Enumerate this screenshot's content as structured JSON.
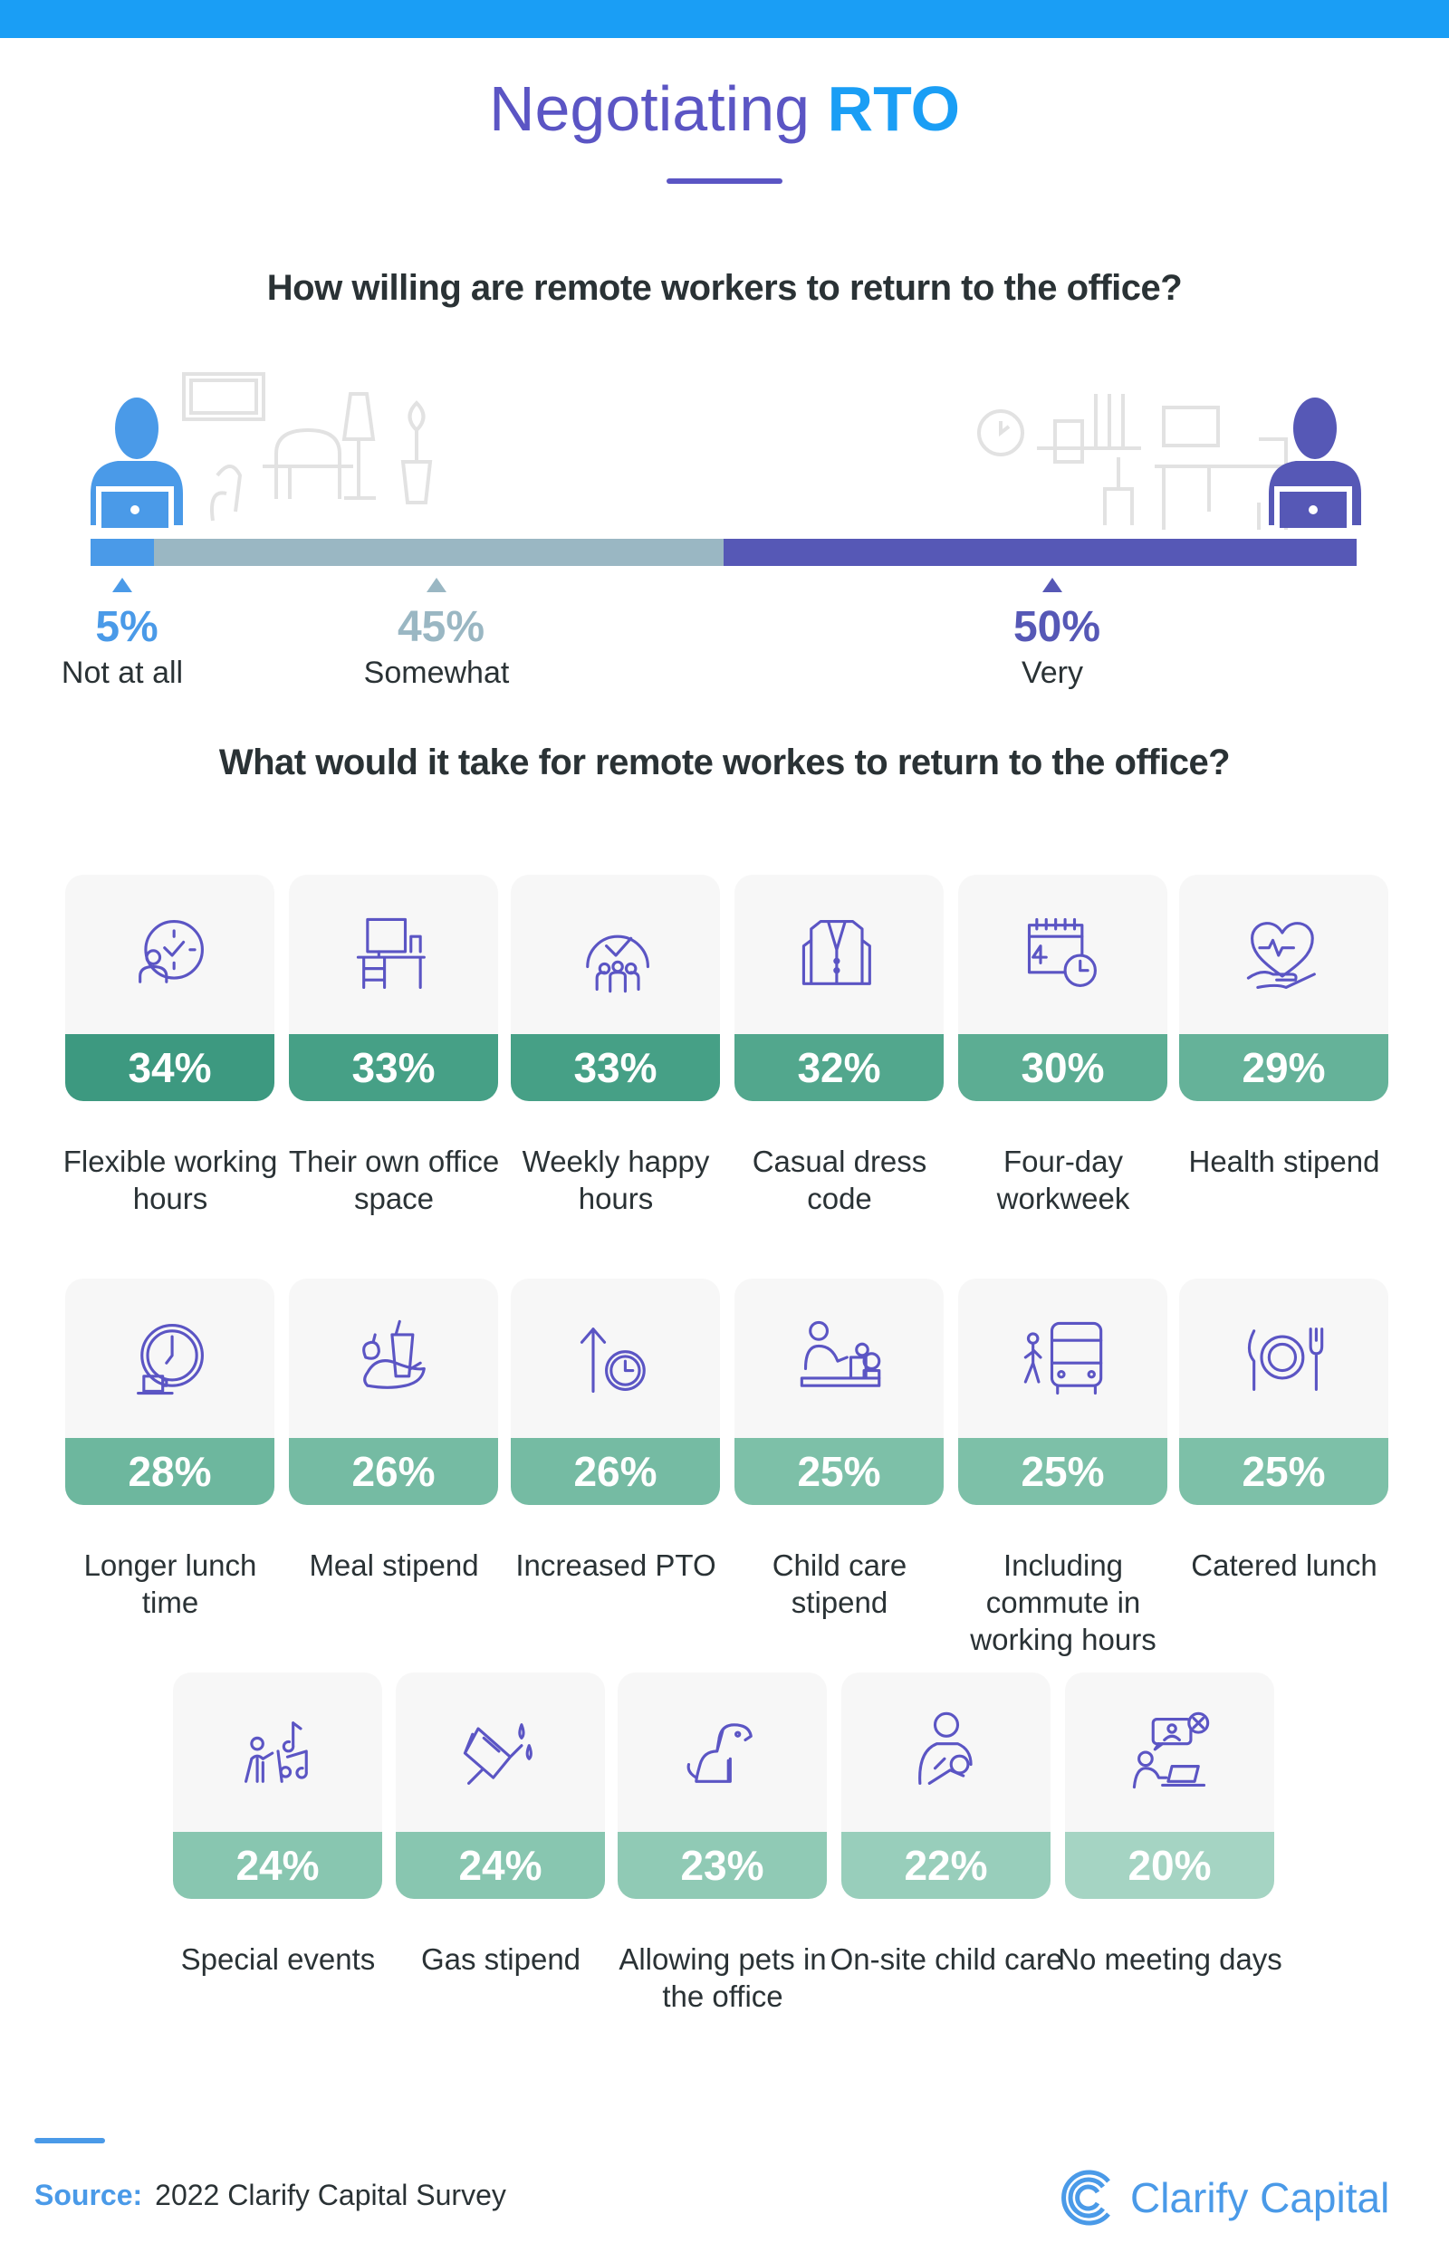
{
  "header": {
    "title_light": "Negotiating",
    "title_bold": "RTO"
  },
  "willingness": {
    "question": "How willing are remote workers to return to the office?",
    "segments": [
      {
        "label": "Not at all",
        "value": 5,
        "display": "5%",
        "color": "#4a9ae8"
      },
      {
        "label": "Somewhat",
        "value": 45,
        "display": "45%",
        "color": "#9ab7c3"
      },
      {
        "label": "Very",
        "value": 50,
        "display": "50%",
        "color": "#5658b6"
      }
    ]
  },
  "incentives": {
    "question": "What would it take for remote workes to return to the office?",
    "items": [
      {
        "pct": "34%",
        "label": "Flexible working hours",
        "icon": "clock-person-icon",
        "color": "#3d9980"
      },
      {
        "pct": "33%",
        "label": "Their own office space",
        "icon": "desk-icon",
        "color": "#46a086"
      },
      {
        "pct": "33%",
        "label": "Weekly happy hours",
        "icon": "clock-group-icon",
        "color": "#46a086"
      },
      {
        "pct": "32%",
        "label": "Casual dress code",
        "icon": "jacket-icon",
        "color": "#52a78d"
      },
      {
        "pct": "30%",
        "label": "Four-day workweek",
        "icon": "calendar-clock-icon",
        "color": "#5cad93"
      },
      {
        "pct": "29%",
        "label": "Health stipend",
        "icon": "heart-hand-icon",
        "color": "#65b299"
      },
      {
        "pct": "28%",
        "label": "Longer lunch time",
        "icon": "clock-coffee-icon",
        "color": "#6db79e"
      },
      {
        "pct": "26%",
        "label": "Meal stipend",
        "icon": "food-icon",
        "color": "#75bba3"
      },
      {
        "pct": "26%",
        "label": "Increased PTO",
        "icon": "arrow-clock-icon",
        "color": "#75bba3"
      },
      {
        "pct": "25%",
        "label": "Child care stipend",
        "icon": "child-care-icon",
        "color": "#7dc0a8"
      },
      {
        "pct": "25%",
        "label": "Including commute in working hours",
        "icon": "bus-icon",
        "color": "#7dc0a8"
      },
      {
        "pct": "25%",
        "label": "Catered lunch",
        "icon": "plate-icon",
        "color": "#7dc0a8"
      },
      {
        "pct": "24%",
        "label": "Special events",
        "icon": "music-icon",
        "color": "#88c6b0"
      },
      {
        "pct": "24%",
        "label": "Gas stipend",
        "icon": "gas-pump-icon",
        "color": "#88c6b0"
      },
      {
        "pct": "23%",
        "label": "Allowing pets in the office",
        "icon": "dog-icon",
        "color": "#90cab5"
      },
      {
        "pct": "22%",
        "label": "On-site child care",
        "icon": "parent-child-icon",
        "color": "#98cebb"
      },
      {
        "pct": "20%",
        "label": "No meeting days",
        "icon": "no-meeting-icon",
        "color": "#a5d4c3"
      }
    ]
  },
  "footer": {
    "source_label": "Source:",
    "source_text": "2022 Clarify Capital Survey",
    "logo_text": "Clarify Capital"
  }
}
